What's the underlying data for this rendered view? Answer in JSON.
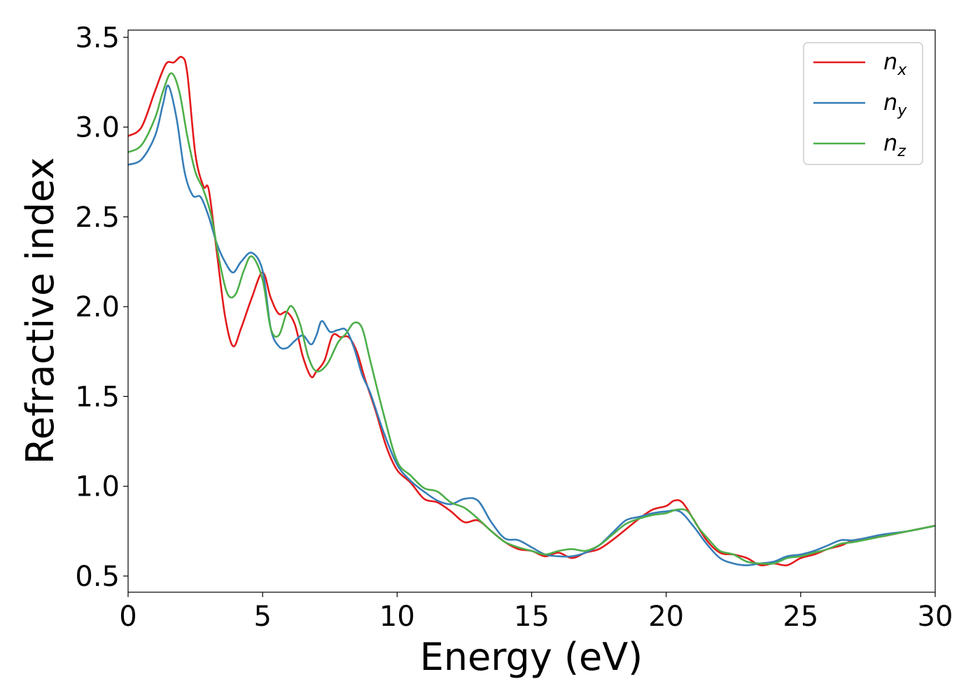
{
  "chart_data": {
    "type": "line",
    "title": "",
    "xlabel": "Energy (eV)",
    "ylabel": "Refractive index",
    "xlim": [
      0,
      30
    ],
    "ylim": [
      0.41,
      3.54
    ],
    "xticks": [
      "0",
      "5",
      "10",
      "15",
      "20",
      "25",
      "30"
    ],
    "yticks": [
      "0.5",
      "1.0",
      "1.5",
      "2.0",
      "2.5",
      "3.0",
      "3.5"
    ],
    "grid": false,
    "legend_position": "top-right",
    "series": [
      {
        "name": "n_x",
        "legend_base": "n",
        "legend_sub": "x",
        "color": "#e41a1c",
        "x": [
          0,
          0.5,
          1.0,
          1.4,
          1.7,
          2.0,
          2.2,
          2.5,
          2.8,
          3.0,
          3.3,
          3.6,
          3.9,
          4.2,
          4.6,
          5.0,
          5.3,
          5.6,
          5.9,
          6.2,
          6.5,
          6.8,
          7.0,
          7.3,
          7.6,
          7.9,
          8.2,
          8.5,
          8.8,
          9.2,
          9.6,
          10.0,
          10.5,
          11.0,
          11.5,
          12.0,
          12.5,
          13.0,
          13.5,
          14.0,
          14.5,
          15.0,
          15.5,
          16.0,
          16.5,
          17.0,
          17.5,
          18.0,
          18.5,
          19.0,
          19.5,
          20.0,
          20.3,
          20.6,
          21.0,
          21.5,
          22.0,
          22.5,
          23.0,
          23.5,
          24.0,
          24.5,
          25.0,
          25.5,
          26.0,
          26.5,
          27.0,
          28.0,
          29.0,
          30.0
        ],
        "y": [
          2.95,
          3.0,
          3.2,
          3.35,
          3.36,
          3.39,
          3.3,
          2.85,
          2.67,
          2.65,
          2.3,
          1.95,
          1.78,
          1.88,
          2.05,
          2.19,
          2.05,
          1.96,
          1.97,
          1.9,
          1.72,
          1.61,
          1.64,
          1.7,
          1.84,
          1.83,
          1.83,
          1.75,
          1.6,
          1.42,
          1.22,
          1.09,
          1.02,
          0.93,
          0.91,
          0.86,
          0.8,
          0.81,
          0.75,
          0.69,
          0.65,
          0.64,
          0.61,
          0.63,
          0.6,
          0.63,
          0.65,
          0.7,
          0.76,
          0.82,
          0.87,
          0.89,
          0.92,
          0.91,
          0.82,
          0.7,
          0.63,
          0.62,
          0.6,
          0.56,
          0.57,
          0.56,
          0.6,
          0.62,
          0.65,
          0.67,
          0.7,
          0.72,
          0.75,
          0.78
        ]
      },
      {
        "name": "n_y",
        "legend_base": "n",
        "legend_sub": "y",
        "color": "#377eb8",
        "x": [
          0,
          0.5,
          1.0,
          1.3,
          1.5,
          1.8,
          2.1,
          2.4,
          2.7,
          3.0,
          3.3,
          3.6,
          3.9,
          4.2,
          4.6,
          5.0,
          5.3,
          5.6,
          5.9,
          6.2,
          6.5,
          6.8,
          7.0,
          7.2,
          7.5,
          7.8,
          8.1,
          8.4,
          8.7,
          9.0,
          9.5,
          10.0,
          10.5,
          11.0,
          11.5,
          12.0,
          12.5,
          13.0,
          13.5,
          14.0,
          14.5,
          15.0,
          15.5,
          16.0,
          16.5,
          17.0,
          17.5,
          18.0,
          18.5,
          19.0,
          19.5,
          20.0,
          20.5,
          21.0,
          21.5,
          22.0,
          22.5,
          23.0,
          23.5,
          24.0,
          24.5,
          25.0,
          25.5,
          26.0,
          26.5,
          27.0,
          28.0,
          29.0,
          30.0
        ],
        "y": [
          2.79,
          2.82,
          2.95,
          3.13,
          3.23,
          3.05,
          2.75,
          2.62,
          2.61,
          2.5,
          2.35,
          2.25,
          2.19,
          2.25,
          2.3,
          2.2,
          1.88,
          1.78,
          1.77,
          1.81,
          1.84,
          1.79,
          1.84,
          1.92,
          1.86,
          1.87,
          1.87,
          1.77,
          1.62,
          1.52,
          1.3,
          1.12,
          1.03,
          0.97,
          0.92,
          0.9,
          0.93,
          0.92,
          0.8,
          0.71,
          0.7,
          0.66,
          0.62,
          0.61,
          0.61,
          0.63,
          0.67,
          0.74,
          0.81,
          0.83,
          0.85,
          0.86,
          0.86,
          0.78,
          0.68,
          0.6,
          0.57,
          0.56,
          0.57,
          0.58,
          0.61,
          0.62,
          0.64,
          0.67,
          0.7,
          0.7,
          0.73,
          0.75,
          0.78
        ]
      },
      {
        "name": "n_z",
        "legend_base": "n",
        "legend_sub": "z",
        "color": "#4daf4a",
        "x": [
          0,
          0.5,
          1.0,
          1.3,
          1.6,
          1.9,
          2.2,
          2.5,
          2.8,
          3.1,
          3.4,
          3.7,
          4.0,
          4.3,
          4.6,
          5.0,
          5.3,
          5.6,
          5.9,
          6.1,
          6.4,
          6.7,
          7.0,
          7.4,
          7.8,
          8.1,
          8.4,
          8.7,
          9.0,
          9.5,
          10.0,
          10.5,
          11.0,
          11.5,
          12.0,
          12.5,
          13.0,
          13.5,
          14.0,
          14.5,
          15.0,
          15.5,
          16.0,
          16.5,
          17.0,
          17.5,
          18.0,
          18.5,
          19.0,
          19.5,
          20.0,
          20.4,
          20.8,
          21.2,
          21.6,
          22.0,
          22.5,
          23.0,
          23.5,
          24.0,
          24.5,
          25.0,
          25.5,
          26.0,
          26.5,
          27.0,
          28.0,
          29.0,
          30.0
        ],
        "y": [
          2.86,
          2.9,
          3.05,
          3.2,
          3.3,
          3.2,
          2.95,
          2.75,
          2.65,
          2.5,
          2.25,
          2.07,
          2.07,
          2.2,
          2.28,
          2.15,
          1.88,
          1.84,
          1.97,
          2.0,
          1.9,
          1.72,
          1.64,
          1.68,
          1.8,
          1.85,
          1.91,
          1.88,
          1.7,
          1.4,
          1.14,
          1.06,
          0.99,
          0.97,
          0.91,
          0.88,
          0.82,
          0.75,
          0.69,
          0.66,
          0.64,
          0.62,
          0.64,
          0.65,
          0.64,
          0.67,
          0.73,
          0.79,
          0.82,
          0.84,
          0.85,
          0.87,
          0.86,
          0.77,
          0.7,
          0.64,
          0.62,
          0.58,
          0.57,
          0.57,
          0.6,
          0.61,
          0.63,
          0.65,
          0.68,
          0.69,
          0.72,
          0.75,
          0.78
        ]
      }
    ]
  }
}
